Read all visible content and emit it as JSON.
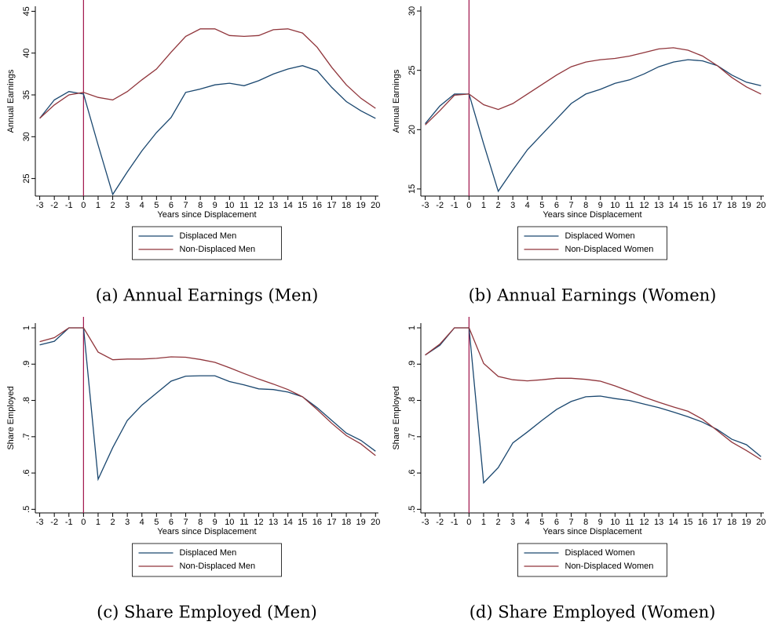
{
  "chart_data": [
    {
      "type": "line",
      "caption": "(a) Annual Earnings (Men)",
      "ylabel": "Annual Earnings",
      "xlabel": "Years since Displacement",
      "x": [
        -3,
        -2,
        -1,
        0,
        1,
        2,
        3,
        4,
        5,
        6,
        7,
        8,
        9,
        10,
        11,
        12,
        13,
        14,
        15,
        16,
        17,
        18,
        19,
        20
      ],
      "series": [
        {
          "name": "Displaced Men",
          "color": "#1a476f",
          "values": [
            32.2,
            34.4,
            35.4,
            35.1,
            29,
            23.1,
            25.8,
            28.3,
            30.5,
            32.3,
            35.3,
            35.7,
            36.2,
            36.4,
            36.1,
            36.7,
            37.5,
            38.1,
            38.5,
            37.9,
            35.9,
            34.2,
            33.1,
            32.2
          ]
        },
        {
          "name": "Non-Displaced Men",
          "color": "#90353b",
          "values": [
            32.2,
            33.8,
            35.0,
            35.3,
            34.7,
            34.4,
            35.4,
            36.8,
            38.1,
            40.1,
            42.0,
            42.9,
            42.9,
            42.1,
            42.0,
            42.1,
            42.8,
            42.9,
            42.4,
            40.7,
            38.3,
            36.2,
            34.6,
            33.4
          ]
        }
      ],
      "xlim": [
        -3.3,
        20.2
      ],
      "xticks": [
        -3,
        -2,
        -1,
        0,
        1,
        2,
        3,
        4,
        5,
        6,
        7,
        8,
        9,
        10,
        11,
        12,
        13,
        14,
        15,
        16,
        17,
        18,
        19,
        20
      ],
      "ylim": [
        22.9,
        45.6
      ],
      "yticks": [
        25,
        30,
        35,
        40,
        45
      ],
      "vline": 0,
      "vline_color": "#a0134a",
      "legend": "bottom"
    },
    {
      "type": "line",
      "caption": "(b) Annual Earnings (Women)",
      "ylabel": "Annual Earnings",
      "xlabel": "Years since Displacement",
      "x": [
        -3,
        -2,
        -1,
        0,
        1,
        2,
        3,
        4,
        5,
        6,
        7,
        8,
        9,
        10,
        11,
        12,
        13,
        14,
        15,
        16,
        17,
        18,
        19,
        20
      ],
      "series": [
        {
          "name": "Displaced Women",
          "color": "#1a476f",
          "values": [
            20.5,
            22.0,
            23.0,
            23.0,
            18.8,
            14.8,
            16.6,
            18.3,
            19.6,
            20.9,
            22.2,
            23.0,
            23.4,
            23.9,
            24.2,
            24.7,
            25.3,
            25.7,
            25.9,
            25.8,
            25.4,
            24.6,
            24.0,
            23.7
          ]
        },
        {
          "name": "Non-Displaced Women",
          "color": "#90353b",
          "values": [
            20.4,
            21.6,
            22.9,
            23.0,
            22.1,
            21.7,
            22.2,
            23.0,
            23.8,
            24.6,
            25.3,
            25.7,
            25.9,
            26.0,
            26.2,
            26.5,
            26.8,
            26.9,
            26.7,
            26.2,
            25.4,
            24.4,
            23.6,
            23.0
          ]
        }
      ],
      "xlim": [
        -3.3,
        20.2
      ],
      "xticks": [
        -3,
        -2,
        -1,
        0,
        1,
        2,
        3,
        4,
        5,
        6,
        7,
        8,
        9,
        10,
        11,
        12,
        13,
        14,
        15,
        16,
        17,
        18,
        19,
        20
      ],
      "ylim": [
        14.4,
        30.4
      ],
      "yticks": [
        15,
        20,
        25,
        30
      ],
      "vline": 0,
      "vline_color": "#a0134a",
      "legend": "bottom"
    },
    {
      "type": "line",
      "caption": "(c) Share Employed (Men)",
      "ylabel": "Share Employed",
      "xlabel": "Years since Displacement",
      "x": [
        -3,
        -2,
        -1,
        0,
        1,
        2,
        3,
        4,
        5,
        6,
        7,
        8,
        9,
        10,
        11,
        12,
        13,
        14,
        15,
        16,
        17,
        18,
        19,
        20
      ],
      "series": [
        {
          "name": "Displaced Men",
          "color": "#1a476f",
          "values": [
            0.953,
            0.963,
            1,
            1,
            0.583,
            0.67,
            0.745,
            0.787,
            0.82,
            0.853,
            0.867,
            0.868,
            0.868,
            0.852,
            0.843,
            0.832,
            0.83,
            0.823,
            0.81,
            0.78,
            0.745,
            0.71,
            0.69,
            0.66
          ]
        },
        {
          "name": "Non-Displaced Men",
          "color": "#90353b",
          "values": [
            0.962,
            0.973,
            1,
            1,
            0.933,
            0.912,
            0.914,
            0.914,
            0.916,
            0.92,
            0.919,
            0.913,
            0.905,
            0.89,
            0.874,
            0.859,
            0.845,
            0.83,
            0.81,
            0.775,
            0.737,
            0.703,
            0.68,
            0.648
          ]
        }
      ],
      "xlim": [
        -3.3,
        20.2
      ],
      "xticks": [
        -3,
        -2,
        -1,
        0,
        1,
        2,
        3,
        4,
        5,
        6,
        7,
        8,
        9,
        10,
        11,
        12,
        13,
        14,
        15,
        16,
        17,
        18,
        19,
        20
      ],
      "ylim": [
        0.49,
        1.013
      ],
      "yticks": [
        {
          "value": 0.5,
          "label": ".5"
        },
        {
          "value": 0.6,
          "label": ".6"
        },
        {
          "value": 0.7,
          "label": ".7"
        },
        {
          "value": 0.8,
          "label": ".8"
        },
        {
          "value": 0.9,
          "label": ".9"
        },
        1
      ],
      "vline": 0,
      "vline_color": "#a0134a",
      "legend": "bottom"
    },
    {
      "type": "line",
      "caption": "(d) Share Employed (Women)",
      "ylabel": "Share Employed",
      "xlabel": "Years since Displacement",
      "x": [
        -3,
        -2,
        -1,
        0,
        1,
        2,
        3,
        4,
        5,
        6,
        7,
        8,
        9,
        10,
        11,
        12,
        13,
        14,
        15,
        16,
        17,
        18,
        19,
        20
      ],
      "series": [
        {
          "name": "Displaced Women",
          "color": "#1a476f",
          "values": [
            0.925,
            0.952,
            1,
            1,
            0.573,
            0.615,
            0.683,
            0.713,
            0.745,
            0.775,
            0.797,
            0.81,
            0.812,
            0.805,
            0.8,
            0.79,
            0.78,
            0.768,
            0.755,
            0.74,
            0.72,
            0.693,
            0.678,
            0.645
          ]
        },
        {
          "name": "Non-Displaced Women",
          "color": "#90353b",
          "values": [
            0.925,
            0.955,
            1,
            1,
            0.902,
            0.866,
            0.857,
            0.854,
            0.857,
            0.861,
            0.861,
            0.858,
            0.853,
            0.84,
            0.825,
            0.809,
            0.795,
            0.782,
            0.77,
            0.748,
            0.717,
            0.685,
            0.662,
            0.637
          ]
        }
      ],
      "xlim": [
        -3.3,
        20.2
      ],
      "xticks": [
        -3,
        -2,
        -1,
        0,
        1,
        2,
        3,
        4,
        5,
        6,
        7,
        8,
        9,
        10,
        11,
        12,
        13,
        14,
        15,
        16,
        17,
        18,
        19,
        20
      ],
      "ylim": [
        0.49,
        1.013
      ],
      "yticks": [
        {
          "value": 0.5,
          "label": ".5"
        },
        {
          "value": 0.6,
          "label": ".6"
        },
        {
          "value": 0.7,
          "label": ".7"
        },
        {
          "value": 0.8,
          "label": ".8"
        },
        {
          "value": 0.9,
          "label": ".9"
        },
        1
      ],
      "vline": 0,
      "vline_color": "#a0134a",
      "legend": "bottom"
    }
  ]
}
